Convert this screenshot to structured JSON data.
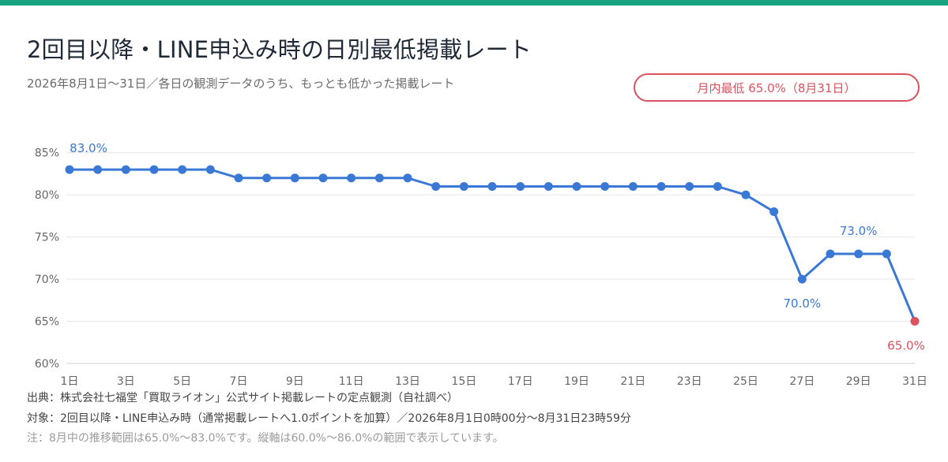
{
  "colors": {
    "top_bar": "#18a37f",
    "line": "#3a78d6",
    "point": "#3a78d6",
    "min_point": "#d9525e",
    "grid": "#e6e6e6",
    "axis_text": "#666666",
    "label_blue": "#3a78d6",
    "label_red": "#d9525e"
  },
  "header": {
    "title": "2回目以降・LINE申込み時の日別最低掲載レート",
    "subtitle": "2026年8月1日〜31日／各日の観測データのうち、もっとも低かった掲載レート",
    "badge": "月内最低 65.0%（8月31日）"
  },
  "footer": {
    "source": "出典：株式会社七福堂「買取ライオン」公式サイト掲載レートの定点観測（自社調べ）",
    "target": "対象：2回目以降・LINE申込み時（通常掲載レートへ1.0ポイントを加算）／2026年8月1日0時00分〜8月31日23時59分",
    "note": "注：8月中の推移範囲は65.0%〜83.0%です。縦軸は60.0%〜86.0%の範囲で表示しています。"
  },
  "chart_data": {
    "type": "line",
    "title": "2回目以降・LINE申込み時の日別最低掲載レート",
    "subtitle": "2026年8月1日〜31日／各日の観測データのうち、もっとも低かった掲載レート",
    "x": [
      1,
      2,
      3,
      4,
      5,
      6,
      7,
      8,
      9,
      10,
      11,
      12,
      13,
      14,
      15,
      16,
      17,
      18,
      19,
      20,
      21,
      22,
      23,
      24,
      25,
      26,
      27,
      28,
      29,
      30,
      31
    ],
    "values": [
      83,
      83,
      83,
      83,
      83,
      83,
      82,
      82,
      82,
      82,
      82,
      82,
      82,
      81,
      81,
      81,
      81,
      81,
      81,
      81,
      81,
      81,
      81,
      81,
      80,
      78,
      70,
      73,
      73,
      73,
      65
    ],
    "xticks": [
      "1日",
      "3日",
      "5日",
      "7日",
      "9日",
      "11日",
      "13日",
      "15日",
      "17日",
      "19日",
      "21日",
      "23日",
      "25日",
      "27日",
      "29日",
      "31日"
    ],
    "xtick_values": [
      1,
      3,
      5,
      7,
      9,
      11,
      13,
      15,
      17,
      19,
      21,
      23,
      25,
      27,
      29,
      31
    ],
    "yticks": [
      "60%",
      "65%",
      "70%",
      "75%",
      "80%",
      "85%"
    ],
    "ytick_values": [
      60,
      65,
      70,
      75,
      80,
      85
    ],
    "ylim": [
      60,
      86
    ],
    "xlim": [
      1,
      31
    ],
    "grid": true,
    "highlight_min_index": 30,
    "annotations": [
      {
        "text": "83.0%",
        "x": 1,
        "y": 83,
        "placement": "above-right",
        "color": "blue"
      },
      {
        "text": "73.0%",
        "x": 29,
        "y": 73,
        "placement": "above",
        "color": "blue"
      },
      {
        "text": "70.0%",
        "x": 27,
        "y": 70,
        "placement": "below",
        "color": "blue"
      },
      {
        "text": "65.0%",
        "x": 31,
        "y": 65,
        "placement": "below-left",
        "color": "red"
      }
    ]
  }
}
